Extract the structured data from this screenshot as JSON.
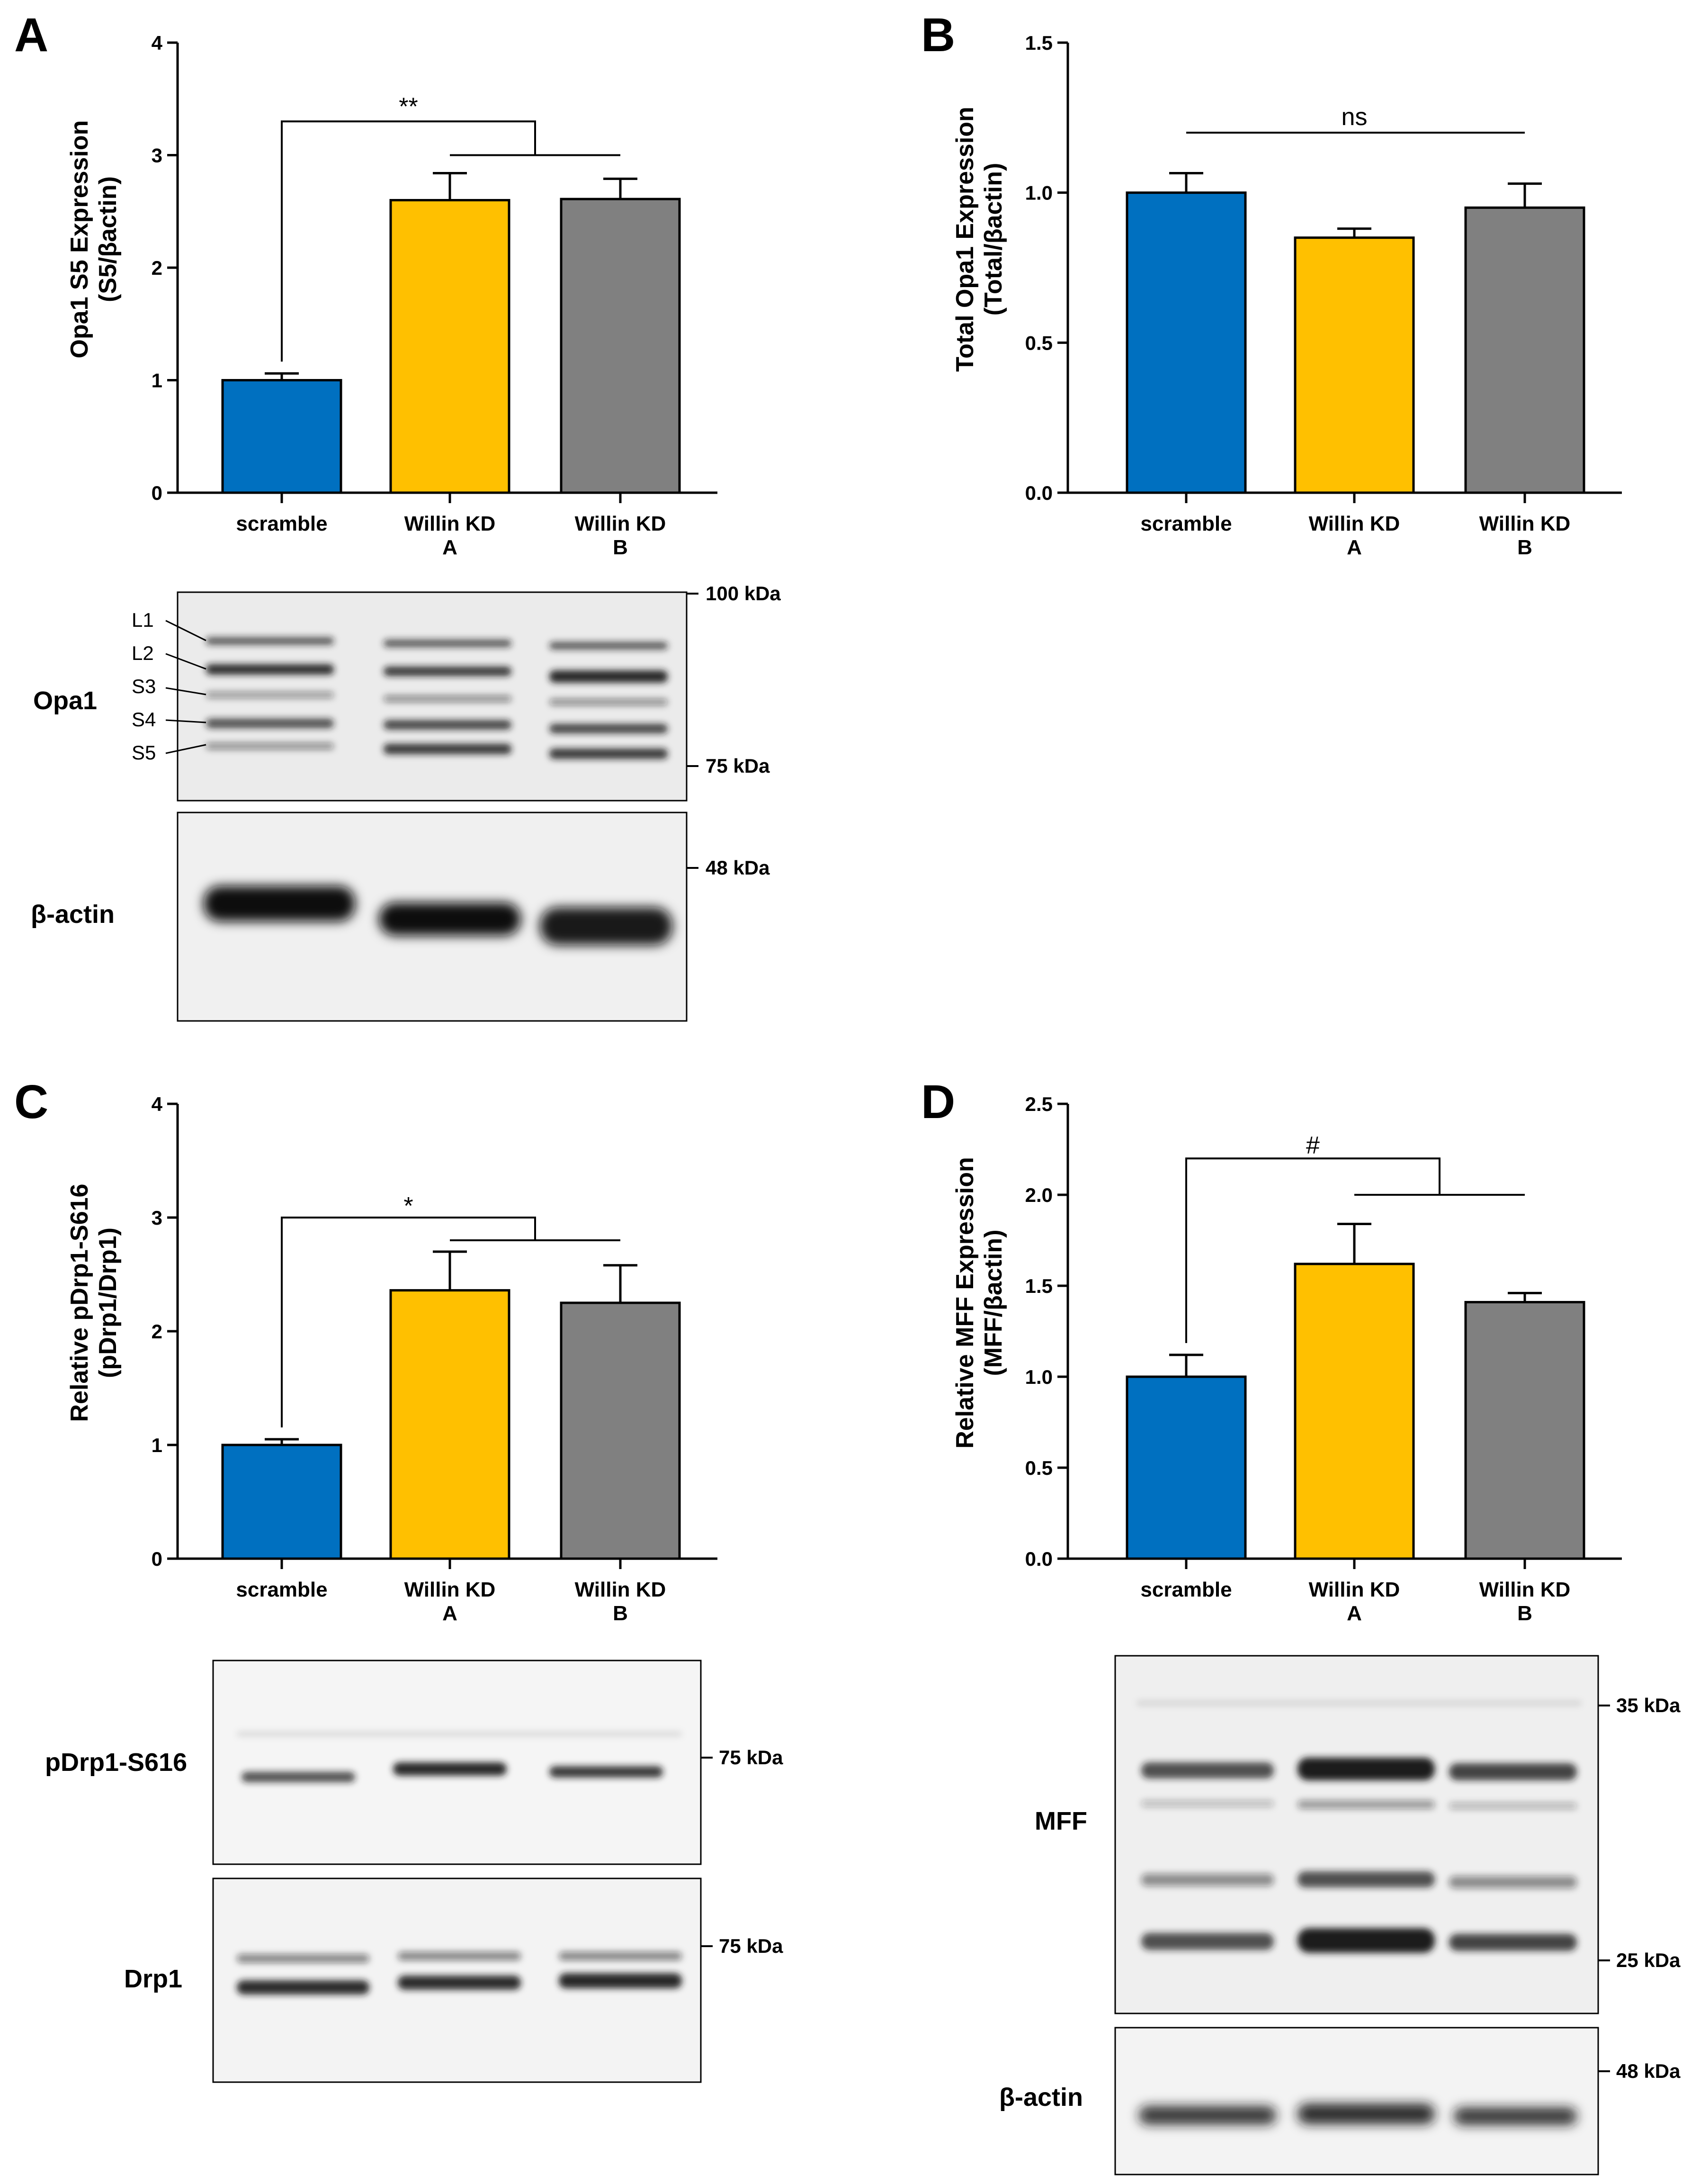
{
  "colors": {
    "scramble": "#0070C0",
    "willin_a": "#FFC000",
    "willin_b": "#808080",
    "axis": "#000000"
  },
  "chart_data": [
    {
      "panel": "A",
      "type": "bar",
      "ylabel_line1": "Opa1 S5 Expression",
      "ylabel_line2": "(S5/βactin)",
      "categories": [
        [
          "scramble"
        ],
        [
          "Willin KD",
          "A"
        ],
        [
          "Willin KD",
          "B"
        ]
      ],
      "values": [
        1.0,
        2.6,
        2.61
      ],
      "errors": [
        0.06,
        0.24,
        0.18
      ],
      "ylim": [
        0,
        4
      ],
      "yticks": [
        "0",
        "1",
        "2",
        "3",
        "4"
      ],
      "ytick_values": [
        0,
        1,
        2,
        3,
        4
      ],
      "significance": {
        "label": "**",
        "style": "bracket",
        "level1": 3.3,
        "level2": 3.0,
        "label_y": 3.38
      }
    },
    {
      "panel": "B",
      "type": "bar",
      "ylabel_line1": "Total Opa1 Expression",
      "ylabel_line2": "(Total/βactin)",
      "categories": [
        [
          "scramble"
        ],
        [
          "Willin KD",
          "A"
        ],
        [
          "Willin KD",
          "B"
        ]
      ],
      "values": [
        1.0,
        0.85,
        0.95
      ],
      "errors": [
        0.065,
        0.03,
        0.08
      ],
      "ylim": [
        0,
        1.5
      ],
      "yticks": [
        "0.0",
        "0.5",
        "1.0",
        "1.5"
      ],
      "ytick_values": [
        0,
        0.5,
        1.0,
        1.5
      ],
      "significance": {
        "label": "ns",
        "style": "line",
        "level1": 1.2,
        "label_y": 1.23
      }
    },
    {
      "panel": "C",
      "type": "bar",
      "ylabel_line1": "Relative pDrp1-S616",
      "ylabel_line2": "(pDrp1/Drp1)",
      "categories": [
        [
          "scramble"
        ],
        [
          "Willin KD",
          "A"
        ],
        [
          "Willin KD",
          "B"
        ]
      ],
      "values": [
        1.0,
        2.36,
        2.25
      ],
      "errors": [
        0.05,
        0.34,
        0.33
      ],
      "ylim": [
        0,
        4
      ],
      "yticks": [
        "0",
        "1",
        "2",
        "3",
        "4"
      ],
      "ytick_values": [
        0,
        1,
        2,
        3,
        4
      ],
      "significance": {
        "label": "*",
        "style": "bracket",
        "level1": 3.0,
        "level2": 2.8,
        "label_y": 3.05
      }
    },
    {
      "panel": "D",
      "type": "bar",
      "ylabel_line1": "Relative MFF Expression",
      "ylabel_line2": "(MFF/βactin)",
      "categories": [
        [
          "scramble"
        ],
        [
          "Willin KD",
          "A"
        ],
        [
          "Willin KD",
          "B"
        ]
      ],
      "values": [
        1.0,
        1.62,
        1.41
      ],
      "errors": [
        0.12,
        0.22,
        0.05
      ],
      "ylim": [
        0,
        2.5
      ],
      "yticks": [
        "0.0",
        "0.5",
        "1.0",
        "1.5",
        "2.0",
        "2.5"
      ],
      "ytick_values": [
        0,
        0.5,
        1.0,
        1.5,
        2.0,
        2.5
      ],
      "significance": {
        "label": "#",
        "style": "bracket",
        "level1": 2.2,
        "level2": 2.0,
        "label_y": 2.24
      }
    }
  ],
  "blots": {
    "opa1": {
      "label": "Opa1",
      "bands": [
        "L1",
        "L2",
        "S3",
        "S4",
        "S5"
      ],
      "markers": [
        "100 kDa",
        "75 kDa"
      ]
    },
    "actin_a": {
      "label": "β-actin",
      "markers": [
        "48 kDa"
      ]
    },
    "pdrp1": {
      "label": "pDrp1-S616",
      "markers": [
        "75 kDa"
      ]
    },
    "drp1": {
      "label": "Drp1",
      "markers": [
        "75 kDa"
      ]
    },
    "mff": {
      "label": "MFF",
      "markers": [
        "35 kDa",
        "25 kDa"
      ]
    },
    "actin_d": {
      "label": "β-actin",
      "markers": [
        "48 kDa"
      ]
    }
  }
}
